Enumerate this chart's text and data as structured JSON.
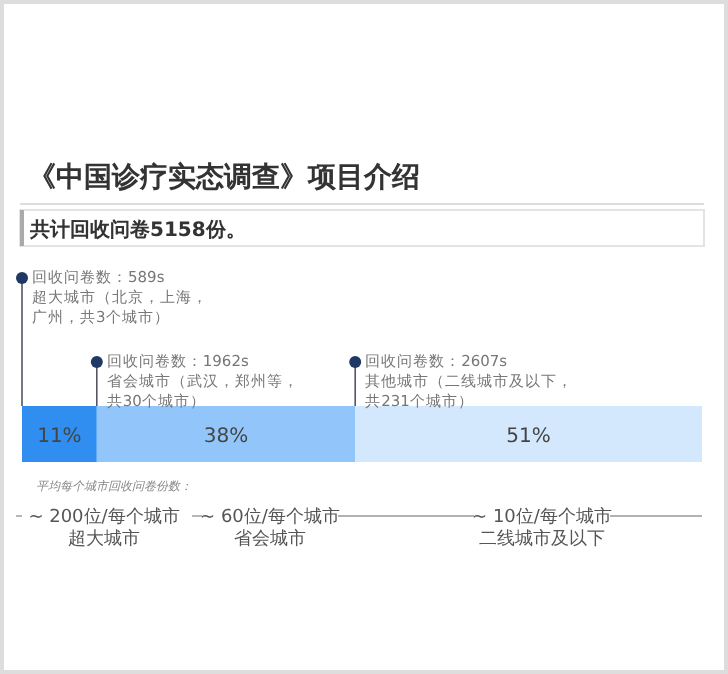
{
  "chart_data": {
    "type": "bar",
    "orientation": "horizontal",
    "stacked": true,
    "title": "《中国诊疗实态调查》项目介绍",
    "subtitle": "共计回收问卷5158份。",
    "categories": [
      null
    ],
    "series": [
      {
        "color": "#2f8ef0",
        "values": [
          11
        ],
        "value_labels": [
          "11%"
        ]
      },
      {
        "color": "#92c6fb",
        "values": [
          38
        ],
        "value_labels": [
          "38%"
        ]
      },
      {
        "color": "#d3e8fd",
        "values": [
          51
        ],
        "value_labels": [
          "51%"
        ]
      }
    ],
    "annotations": [
      "回收问卷数：589s",
      "回收问卷数：1962s",
      "回收问卷数：2607s",
      "超大城市（北京，上海，广州，共3个城市）",
      "省会城市（武汉，郑州等，共30个城市）",
      "其他城市（二线城市及以下，共231个城市）",
      "平均每个城市回收问卷份数：",
      "~ 200位/每个城市",
      "~ 60位/每个城市",
      "~ 10位/每个城市",
      "超大城市",
      "省会城市",
      "二线城市及以下"
    ]
  }
}
